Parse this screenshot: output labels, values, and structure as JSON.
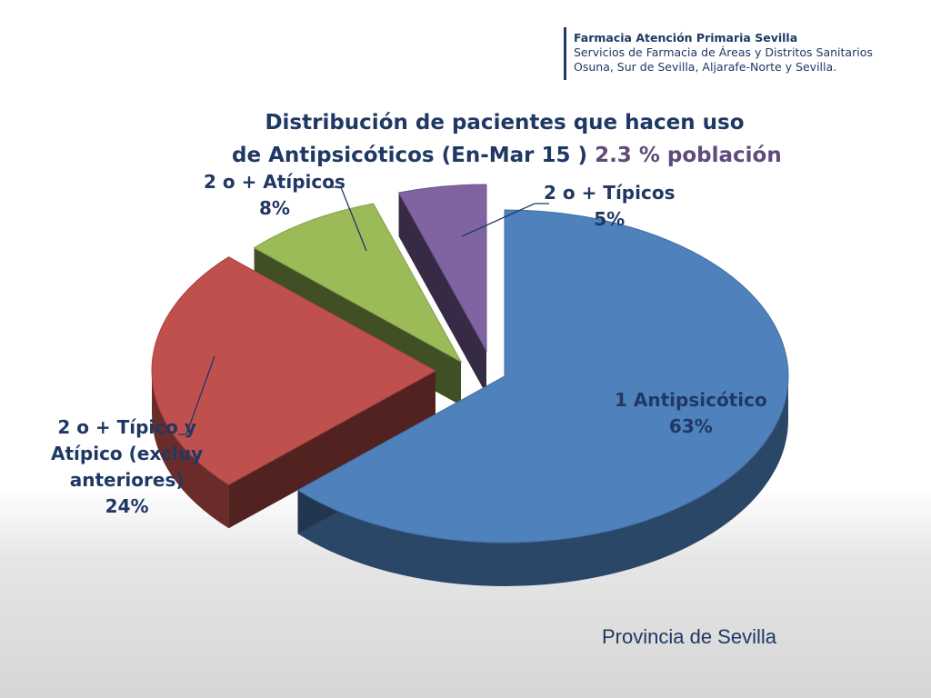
{
  "header": {
    "line1": "Farmacia Atención Primaria Sevilla",
    "line2": "Servicios de Farmacia de Áreas y Distritos Sanitarios",
    "line3": "Osuna, Sur de Sevilla, Aljarafe-Norte y Sevilla."
  },
  "footer": {
    "location": "Provincia de Sevilla"
  },
  "chart_data": {
    "type": "pie",
    "title_line1": "Distribución de pacientes que hacen uso",
    "title_line2_main": "de Antipsicóticos  (En-Mar 15 )",
    "title_line2_accent": "2.3 % población",
    "slices": [
      {
        "label": "1 Antipsicótico",
        "value": 63,
        "value_label": "63%",
        "color": "#4f81bd"
      },
      {
        "label": "2 o + Típico y Atípico (excluy anteriores)",
        "label_lines": [
          "2 o + Típico y",
          "Atípico (excluy",
          "anteriores)"
        ],
        "value": 24,
        "value_label": "24%",
        "color": "#c0504d"
      },
      {
        "label": "2 o + Atípicos",
        "value": 8,
        "value_label": "8%",
        "color": "#9bbb59"
      },
      {
        "label": "2 o + Típicos",
        "value": 5,
        "value_label": "5%",
        "color": "#8064a2"
      }
    ]
  }
}
